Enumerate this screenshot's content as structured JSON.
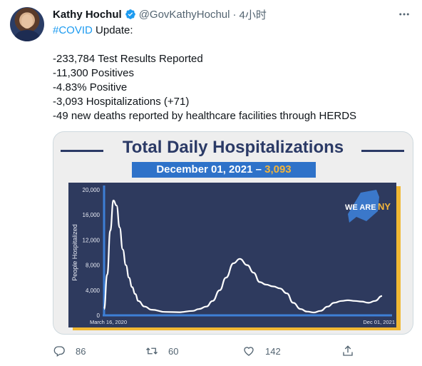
{
  "tweet": {
    "author_name": "Kathy Hochul",
    "handle": "@GovKathyHochul",
    "separator": "·",
    "time": "4小时",
    "lines": [
      {
        "hashtag": "#COVID",
        "rest": " Update:"
      },
      "",
      "-233,784 Test Results Reported",
      "-11,300 Positives",
      "-4.83% Positive",
      "-3,093 Hospitalizations (+71)",
      "-49 new deaths reported by healthcare facilities through HERDS"
    ]
  },
  "media": {
    "title": "Total Daily Hospitalizations",
    "date_label": "December 01, 2021 – ",
    "date_value": "3,093",
    "logo_text": "WE ARE ",
    "logo_ny": "NY"
  },
  "chart_data": {
    "type": "line",
    "title": "Total Daily Hospitalizations",
    "ylabel": "People Hospitalized",
    "xlabel": "",
    "x_start_label": "March 16, 2020",
    "x_end_label": "Dec 01, 2021",
    "x_range": [
      "2020-03-16",
      "2021-12-01"
    ],
    "ylim": [
      0,
      20000
    ],
    "yticks": [
      0,
      4000,
      8000,
      12000,
      16000,
      20000
    ],
    "ytick_labels": [
      "0",
      "4,000",
      "8,000",
      "12,000",
      "16,000",
      "20,000"
    ],
    "grid": false,
    "color": "#ffffff",
    "series": [
      {
        "x": [
          "2020-03-16",
          "2020-03-23",
          "2020-03-30",
          "2020-04-06",
          "2020-04-13",
          "2020-04-20",
          "2020-04-27",
          "2020-05-04",
          "2020-05-11",
          "2020-05-18",
          "2020-05-25",
          "2020-06-01",
          "2020-06-15",
          "2020-07-01",
          "2020-08-01",
          "2020-09-01",
          "2020-10-01",
          "2020-10-15",
          "2020-11-01",
          "2020-11-15",
          "2020-12-01",
          "2020-12-15",
          "2021-01-01",
          "2021-01-15",
          "2021-02-01",
          "2021-02-15",
          "2021-03-01",
          "2021-03-15",
          "2021-04-01",
          "2021-04-15",
          "2021-05-01",
          "2021-05-15",
          "2021-06-01",
          "2021-06-15",
          "2021-07-01",
          "2021-07-15",
          "2021-08-01",
          "2021-08-15",
          "2021-09-01",
          "2021-09-15",
          "2021-10-01",
          "2021-10-15",
          "2021-11-01",
          "2021-11-15",
          "2021-12-01"
        ],
        "values": [
          1000,
          6500,
          13500,
          18300,
          17500,
          14000,
          10500,
          8000,
          6000,
          4500,
          3400,
          2300,
          1400,
          900,
          550,
          500,
          700,
          1000,
          1400,
          2300,
          4000,
          6000,
          8300,
          9000,
          8000,
          6800,
          5300,
          4900,
          4600,
          4300,
          3500,
          2000,
          1000,
          600,
          450,
          700,
          1400,
          2000,
          2300,
          2400,
          2300,
          2200,
          2000,
          2300,
          3093
        ]
      }
    ]
  }
}
